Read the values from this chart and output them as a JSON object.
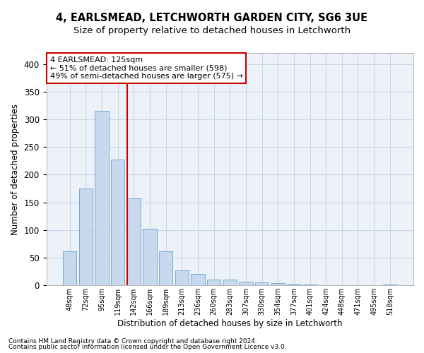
{
  "title1": "4, EARLSMEAD, LETCHWORTH GARDEN CITY, SG6 3UE",
  "title2": "Size of property relative to detached houses in Letchworth",
  "xlabel": "Distribution of detached houses by size in Letchworth",
  "ylabel": "Number of detached properties",
  "footer1": "Contains HM Land Registry data © Crown copyright and database right 2024.",
  "footer2": "Contains public sector information licensed under the Open Government Licence v3.0.",
  "annotation_line1": "4 EARLSMEAD: 125sqm",
  "annotation_line2": "← 51% of detached houses are smaller (598)",
  "annotation_line3": "49% of semi-detached houses are larger (575) →",
  "bar_labels": [
    "48sqm",
    "72sqm",
    "95sqm",
    "119sqm",
    "142sqm",
    "166sqm",
    "189sqm",
    "213sqm",
    "236sqm",
    "260sqm",
    "283sqm",
    "307sqm",
    "330sqm",
    "354sqm",
    "377sqm",
    "401sqm",
    "424sqm",
    "448sqm",
    "471sqm",
    "495sqm",
    "518sqm"
  ],
  "bar_values": [
    62,
    175,
    315,
    228,
    157,
    102,
    62,
    27,
    21,
    10,
    10,
    7,
    5,
    4,
    3,
    2,
    1,
    1,
    0,
    1,
    2
  ],
  "bar_color": "#c8d8ee",
  "bar_edge_color": "#7aaad0",
  "vline_x": 3.575,
  "vline_color": "#cc0000",
  "grid_color": "#c8d4e8",
  "background_color": "#edf2f9",
  "ylim": [
    0,
    420
  ],
  "yticks": [
    0,
    50,
    100,
    150,
    200,
    250,
    300,
    350,
    400
  ],
  "annotation_box_color": "#ffffff",
  "annotation_box_edge": "#cc0000",
  "title1_fontsize": 10.5,
  "title2_fontsize": 9.5
}
